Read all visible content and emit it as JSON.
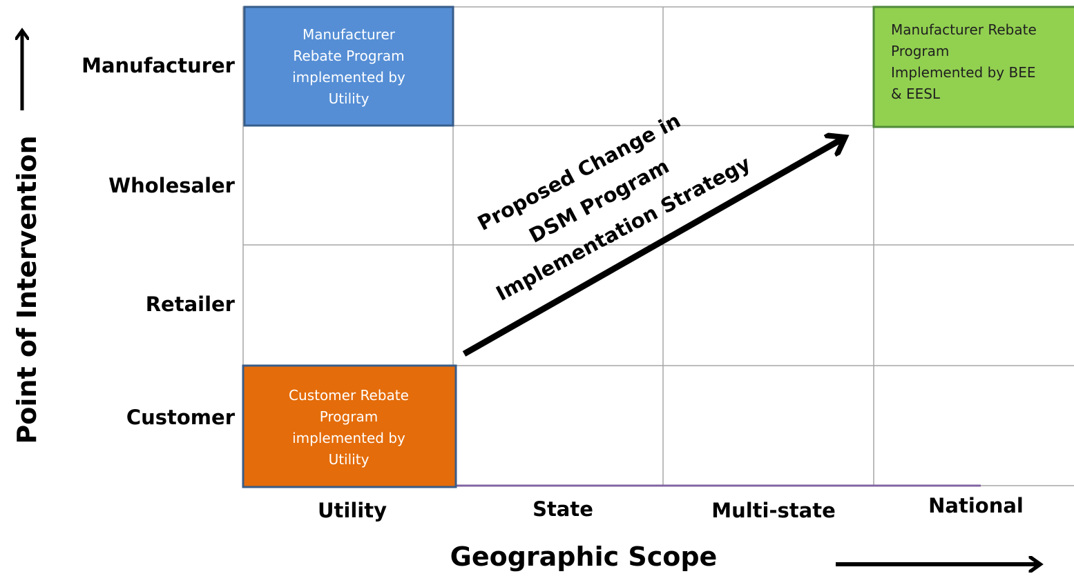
{
  "y_axis": {
    "title": "Point of Intervention",
    "rows": [
      "Manufacturer",
      "Wholesaler",
      "Retailer",
      "Customer"
    ]
  },
  "x_axis": {
    "title": "Geographic Scope",
    "columns": [
      "Utility",
      "State",
      "Multi-state",
      "National"
    ]
  },
  "boxes": [
    {
      "lines": [
        "Manufacturer",
        "Rebate Program",
        "implemented by",
        "Utility"
      ]
    },
    {
      "lines": [
        "Manufacturer Rebate",
        "Program",
        "Implemented by BEE",
        "& EESL"
      ]
    },
    {
      "lines": [
        "Customer Rebate",
        "Program",
        "implemented by",
        "Utility"
      ]
    }
  ],
  "arrow_label": {
    "lines": [
      "Proposed Change in",
      "DSM Program",
      "Implementation Strategy"
    ]
  }
}
